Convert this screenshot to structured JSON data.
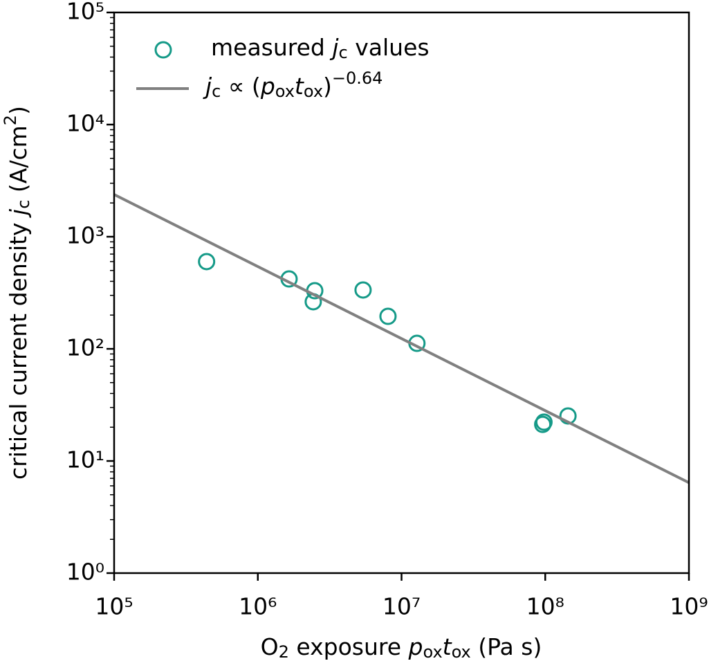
{
  "chart_data": {
    "type": "scatter",
    "xlabel": "O2 exposure poxtox (Pa s)",
    "ylabel": "critical current density jc (A/cm2)",
    "xscale": "log",
    "yscale": "log",
    "xlim": [
      100000,
      1000000000
    ],
    "ylim": [
      1,
      100000
    ],
    "xticks": [
      {
        "value": 100000,
        "label": "10⁵"
      },
      {
        "value": 1000000,
        "label": "10⁶"
      },
      {
        "value": 10000000,
        "label": "10⁷"
      },
      {
        "value": 100000000,
        "label": "10⁸"
      },
      {
        "value": 1000000000,
        "label": "10⁹"
      }
    ],
    "yticks": [
      {
        "value": 1,
        "label": "10⁰"
      },
      {
        "value": 10,
        "label": "10¹"
      },
      {
        "value": 100,
        "label": "10²"
      },
      {
        "value": 1000,
        "label": "10³"
      },
      {
        "value": 10000,
        "label": "10⁴"
      },
      {
        "value": 100000,
        "label": "10⁵"
      }
    ],
    "legend": "upper left",
    "series": [
      {
        "name": "measured jc values",
        "color": "#159a88",
        "type": "scatter",
        "x": [
          440000,
          1650000,
          2490000,
          2430000,
          5400000,
          8050000,
          12800000,
          96000000,
          98000000,
          144000000
        ],
        "values": [
          600,
          420,
          330,
          263,
          335,
          195,
          112,
          21.2,
          22.2,
          25.2
        ]
      },
      {
        "name": "jc ∝ (poxtox)−0.64",
        "color": "#808080",
        "type": "line",
        "x": [
          100000,
          1000000000
        ],
        "values": [
          2380,
          6.4
        ]
      }
    ]
  }
}
